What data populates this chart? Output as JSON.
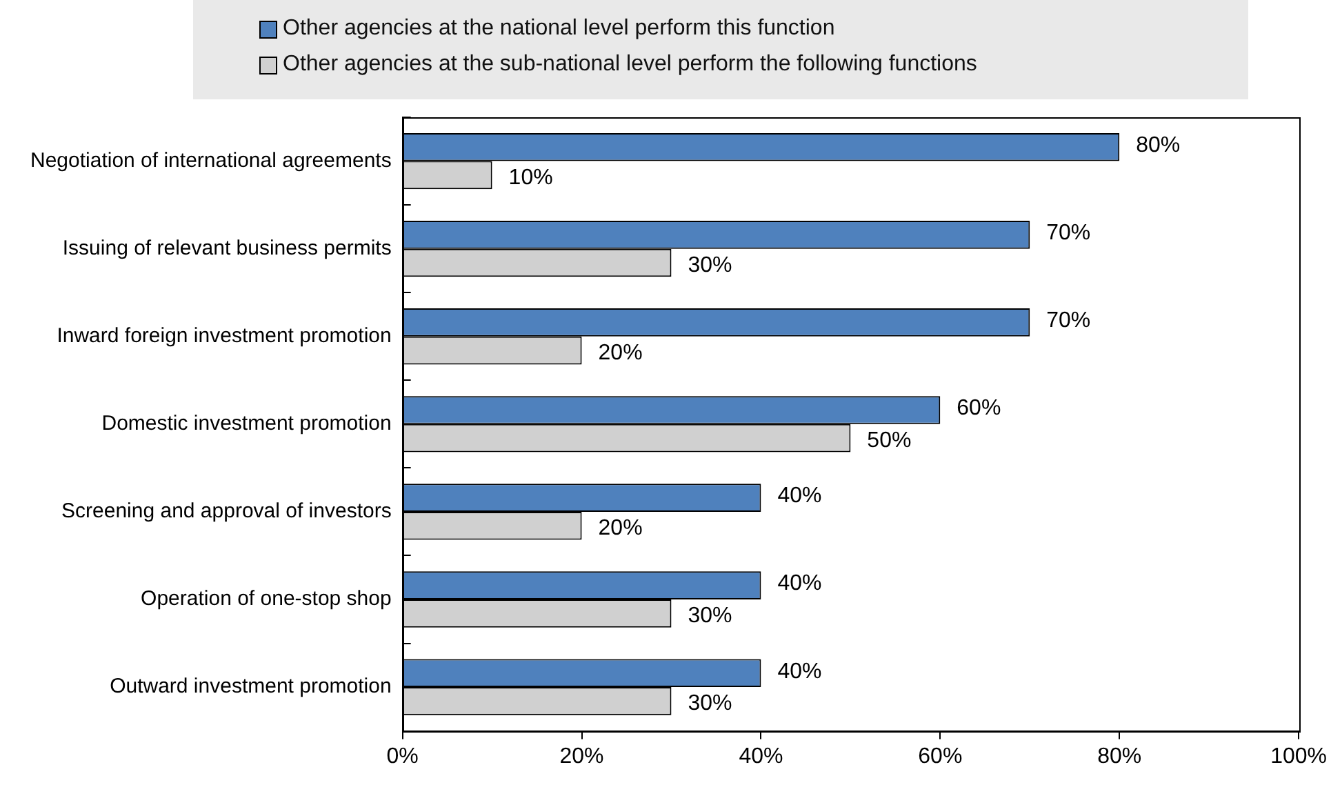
{
  "chart_data": {
    "type": "bar",
    "orientation": "horizontal",
    "categories": [
      "Negotiation of international agreements",
      "Issuing of relevant business permits",
      "Inward foreign investment promotion",
      "Domestic investment promotion",
      "Screening and approval of investors",
      "Operation of one-stop shop",
      "Outward investment promotion"
    ],
    "series": [
      {
        "name": "Other agencies at the national level perform this function",
        "color": "#4f81bd",
        "values": [
          80,
          70,
          70,
          60,
          40,
          40,
          40
        ],
        "value_labels": [
          "80%",
          "70%",
          "70%",
          "60%",
          "40%",
          "40%",
          "40%"
        ]
      },
      {
        "name": "Other agencies at the sub-national level perform the following functions",
        "color": "#d0d0d0",
        "values": [
          10,
          30,
          20,
          50,
          20,
          30,
          30
        ],
        "value_labels": [
          "10%",
          "30%",
          "20%",
          "50%",
          "20%",
          "30%",
          "30%"
        ]
      }
    ],
    "xlim": [
      0,
      100
    ],
    "xticks": [
      {
        "value": 0,
        "label": "0%"
      },
      {
        "value": 20,
        "label": "20%"
      },
      {
        "value": 40,
        "label": "40%"
      },
      {
        "value": 60,
        "label": "60%"
      },
      {
        "value": 80,
        "label": "80%"
      },
      {
        "value": 100,
        "label": "100%"
      }
    ],
    "grid": false,
    "legend": "top"
  }
}
